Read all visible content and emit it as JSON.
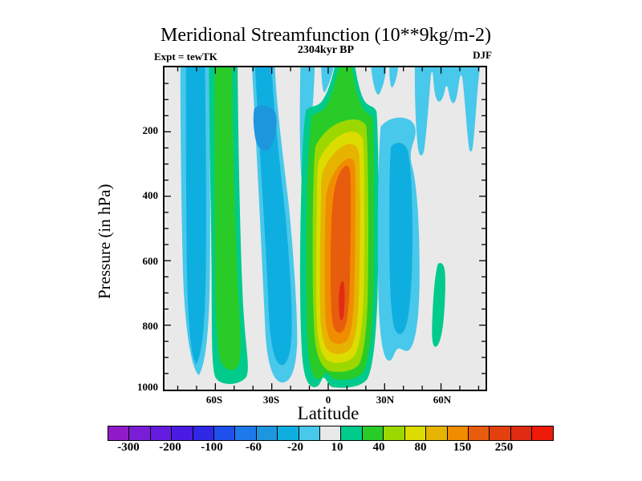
{
  "header": {
    "title": "Meridional Streamfunction (10**9kg/m-2)",
    "experiment": "Expt = tewTK",
    "time_label": "2304kyr BP",
    "season": "DJF"
  },
  "axes": {
    "y": {
      "label": "Pressure (in hPa)",
      "ticks": [
        "200",
        "400",
        "600",
        "800",
        "1000"
      ]
    },
    "x": {
      "label": "Latitude",
      "ticks": [
        "60S",
        "30S",
        "0",
        "30N",
        "60N"
      ]
    }
  },
  "colorbar": {
    "labels": [
      "-300",
      "-200",
      "-100",
      "-60",
      "-20",
      "10",
      "40",
      "80",
      "150",
      "250"
    ],
    "colors": [
      "#911BC9",
      "#7A1ED6",
      "#651CDE",
      "#4A1BE2",
      "#2F29E6",
      "#2050EC",
      "#1E7AEA",
      "#1E96DE",
      "#0FAEE0",
      "#48C8EA",
      "#E9E9E9",
      "#00CB8C",
      "#29CB29",
      "#9CD800",
      "#DCDC00",
      "#E6B400",
      "#F08C00",
      "#E85C0E",
      "#E2400E",
      "#E02C12",
      "#EE1A0A"
    ]
  },
  "chart_data": {
    "type": "filled_contour",
    "title": "Meridional Streamfunction (10**9kg/m-2)",
    "experiment": "tewTK",
    "time": "2304kyr BP",
    "season": "DJF",
    "units": "10**9 kg/m-2",
    "xlabel": "Latitude",
    "ylabel": "Pressure (in hPa)",
    "x_ticks": [
      "60S",
      "30S",
      "0",
      "30N",
      "60N"
    ],
    "x_minor_tick_deg": 10,
    "x_range_deg": [
      -87,
      84
    ],
    "y_ticks": [
      200,
      400,
      600,
      800,
      1000
    ],
    "y_minor_tick_hpa": 50,
    "y_range_hpa": [
      0,
      1000
    ],
    "labeled_contour_levels": [
      -300,
      -200,
      -100,
      -60,
      -20,
      10,
      40,
      80,
      150,
      250
    ],
    "background_band_meaning": "values between roughly 0 and 10 shown gray",
    "legend_position": "bottom horizontal colorbar, 21 discrete cells",
    "features": [
      {
        "name": "hadley-cell",
        "sign": "positive",
        "lat_extent": "15S-27N",
        "pressure_extent_hpa": [
          130,
          995
        ],
        "peak_value": "250-300",
        "peak_location": "5N-12N, 500-850 hPa",
        "note": "nested rings teal-green-yellowgreen-yellow-gold-orange-orangered-red; green chimney reaches 0 hPa near 5N-10N"
      },
      {
        "name": "south-polar-negative-band",
        "sign": "negative",
        "lat_extent": "79S-63S",
        "pressure_extent_hpa": [
          0,
          955
        ],
        "min_value": "-40"
      },
      {
        "name": "south-ferrel-positive-band",
        "sign": "positive",
        "lat_extent": "61S-40S",
        "pressure_extent_hpa": [
          0,
          985
        ],
        "max_value": "40-60"
      },
      {
        "name": "south-subtropical-negative-band",
        "sign": "negative",
        "lat_extent": "40S-16S",
        "pressure_extent_hpa": [
          0,
          980
        ],
        "min_value": "-60",
        "min_location": "35S, 130-190 hPa"
      },
      {
        "name": "equatorial-upper-negative-tongue",
        "sign": "negative",
        "lat_extent": "15S-7S",
        "pressure_extent_hpa": [
          0,
          360
        ],
        "min_value": "-20"
      },
      {
        "name": "upper-tropical-negative-wedge",
        "sign": "negative",
        "lat_extent": "4S-2N",
        "pressure_extent_hpa": [
          0,
          80
        ],
        "min_value": "-20"
      },
      {
        "name": "north-subtropical-negative-band",
        "sign": "negative",
        "lat_extent": "28N-50N",
        "pressure_extent_hpa": [
          150,
          900
        ],
        "min_value": "-40 to -60"
      },
      {
        "name": "north-upper-negative-region",
        "sign": "negative",
        "lat_extent": "46N-81N",
        "pressure_extent_hpa": [
          0,
          290
        ],
        "min_value": "-20",
        "note": "jagged lower edge with V-shaped notches"
      },
      {
        "name": "north-midlat-positive-lens",
        "sign": "positive",
        "lat_extent": "56N-63N",
        "pressure_extent_hpa": [
          610,
          870
        ],
        "max_value": "20-40"
      }
    ]
  }
}
